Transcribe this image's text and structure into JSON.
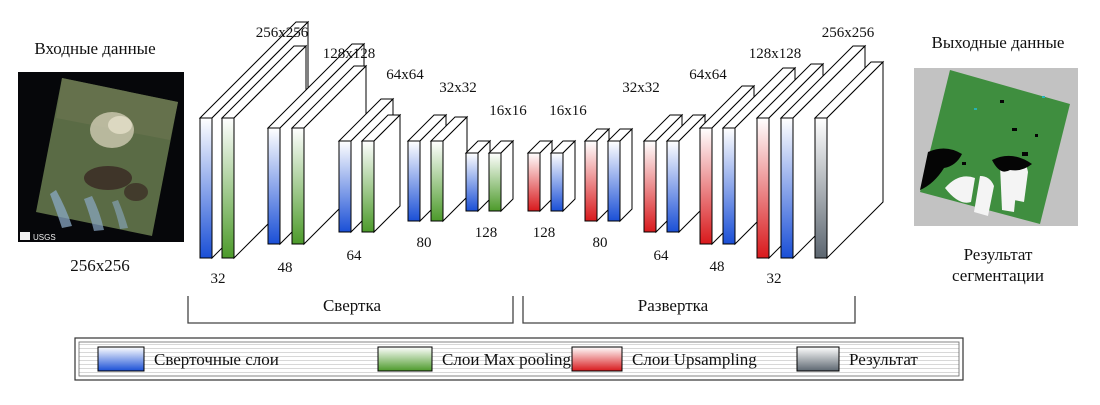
{
  "input": {
    "title": "Входные данные",
    "size": "256x256",
    "watermark": "USGS"
  },
  "output": {
    "title": "Выходные данные",
    "caption_line1": "Результат",
    "caption_line2": "сегментации"
  },
  "encoder": {
    "label": "Свертка",
    "resolutions": [
      "256x256",
      "128x128",
      "64x64",
      "32x32",
      "16x16"
    ],
    "channels": [
      "32",
      "48",
      "64",
      "80",
      "128"
    ]
  },
  "decoder": {
    "label": "Развертка",
    "resolutions": [
      "16x16",
      "32x32",
      "64x64",
      "128x128",
      "256x256"
    ],
    "channels": [
      "128",
      "80",
      "64",
      "48",
      "32"
    ]
  },
  "legend": [
    {
      "label": "Сверточные слои",
      "color": "#1a4fd6"
    },
    {
      "label": "Слои Max pooling",
      "color": "#4c9a2a"
    },
    {
      "label": "Слои Upsampling",
      "color": "#d8191c"
    },
    {
      "label": "Результат",
      "color": "#5c6670"
    }
  ],
  "colors": {
    "conv": "#1a4fd6",
    "pool": "#4c9a2a",
    "up": "#d8191c",
    "result": "#5c6670"
  }
}
